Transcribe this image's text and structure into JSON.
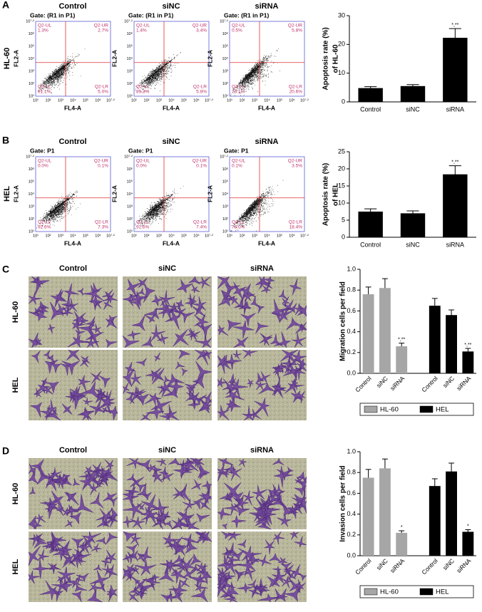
{
  "panels": [
    {
      "label": "A",
      "row_label": "HL-60",
      "column_titles": [
        "Control",
        "siNC",
        "siRNA"
      ],
      "plots": [
        {
          "gate": "Gate: (R1 in P1)",
          "quadrants": [
            {
              "name": "Q2-UL",
              "value": "1.3%"
            },
            {
              "name": "Q2-UR",
              "value": "2.7%"
            },
            {
              "name": "Q2-LL",
              "value": "91.1%"
            },
            {
              "name": "Q2-LR",
              "value": "5.0%"
            }
          ]
        },
        {
          "gate": "Gate: (R1 in P1)",
          "quadrants": [
            {
              "name": "Q2-UL",
              "value": "1.4%"
            },
            {
              "name": "Q2-UR",
              "value": "3.4%"
            },
            {
              "name": "Q2-LL",
              "value": "89.3%"
            },
            {
              "name": "Q2-LR",
              "value": "5.8%"
            }
          ]
        },
        {
          "gate": "Gate: (R1 in P1)",
          "quadrants": [
            {
              "name": "Q2-UL",
              "value": "0.5%"
            },
            {
              "name": "Q2-UR",
              "value": "5.8%"
            },
            {
              "name": "Q2-LL",
              "value": "73.1%"
            },
            {
              "name": "Q2-LR",
              "value": "20.6%"
            }
          ]
        }
      ]
    },
    {
      "label": "B",
      "row_label": "HEL",
      "column_titles": [
        "Control",
        "siNC",
        "siRNA"
      ],
      "plots": [
        {
          "gate": "Gate: P1",
          "quadrants": [
            {
              "name": "Q2-UL",
              "value": "0.0%"
            },
            {
              "name": "Q2-UR",
              "value": "0.1%"
            },
            {
              "name": "Q2-LL",
              "value": "92.6%"
            },
            {
              "name": "Q2-LR",
              "value": "7.3%"
            }
          ]
        },
        {
          "gate": "Gate: P1",
          "quadrants": [
            {
              "name": "Q2-UL",
              "value": "0.0%"
            },
            {
              "name": "Q2-UR",
              "value": "0.1%"
            },
            {
              "name": "Q2-LL",
              "value": "92.5%"
            },
            {
              "name": "Q2-LR",
              "value": "7.4%"
            }
          ]
        },
        {
          "gate": "Gate: P1",
          "quadrants": [
            {
              "name": "Q2-UL",
              "value": "0.1%"
            },
            {
              "name": "Q2-UR",
              "value": "3.5%"
            },
            {
              "name": "Q2-LL",
              "value": "78.0%"
            },
            {
              "name": "Q2-LR",
              "value": "18.4%"
            }
          ]
        }
      ]
    },
    {
      "label": "C",
      "row_labels": [
        "HL-60",
        "HEL"
      ],
      "column_titles": [
        "Control",
        "siNC",
        "siRNA"
      ]
    },
    {
      "label": "D",
      "row_labels": [
        "HL-60",
        "HEL"
      ],
      "column_titles": [
        "Control",
        "siNC",
        "siRNA"
      ]
    }
  ],
  "flow_axes": {
    "x_label": "FL4-A",
    "y_label": "FL2-A",
    "ticks": [
      "10¹",
      "10²",
      "10³",
      "10⁴",
      "10⁵",
      "10⁶",
      "10⁷·²"
    ]
  },
  "chart_data": [
    {
      "type": "bar",
      "y_label": [
        "Apoptosis rate (%)",
        "of HL-60"
      ],
      "categories": [
        "Control",
        "siNC",
        "siRNA"
      ],
      "values": [
        4.8,
        5.5,
        22.3
      ],
      "errors": [
        0.5,
        0.5,
        3.2
      ],
      "significance": [
        null,
        null,
        "*,**"
      ],
      "color": "#000000",
      "ylim": [
        0,
        30
      ],
      "yticks": [
        0,
        10,
        20,
        30
      ]
    },
    {
      "type": "bar",
      "y_label": [
        "Apoptosis rate (%)",
        "of HEL"
      ],
      "categories": [
        "Control",
        "siNC",
        "siRNA"
      ],
      "values": [
        7.5,
        7.0,
        18.4
      ],
      "errors": [
        0.8,
        0.7,
        2.5
      ],
      "significance": [
        null,
        null,
        "*,**"
      ],
      "color": "#000000",
      "ylim": [
        0,
        25
      ],
      "yticks": [
        0,
        5,
        10,
        15,
        20,
        25
      ]
    },
    {
      "type": "bar",
      "y_label": [
        "Migration cells per field"
      ],
      "categories": [
        "Control",
        "siNC",
        "siRNA"
      ],
      "series": [
        {
          "name": "HL-60",
          "color": "#a6a6a6",
          "values": [
            0.76,
            0.82,
            0.26
          ],
          "errors": [
            0.07,
            0.09,
            0.03
          ],
          "significance": [
            null,
            null,
            "*,**"
          ]
        },
        {
          "name": "HEL",
          "color": "#000000",
          "values": [
            0.65,
            0.56,
            0.21
          ],
          "errors": [
            0.07,
            0.05,
            0.03
          ],
          "significance": [
            null,
            null,
            "*,**"
          ]
        }
      ],
      "ylim": [
        0,
        1
      ],
      "yticks": [
        {
          "value": 0,
          "label": "0.0"
        },
        0.2,
        0.4,
        0.6,
        0.8,
        {
          "value": 1,
          "label": "1.0"
        }
      ]
    },
    {
      "type": "bar",
      "y_label": [
        "Invasion cells per field"
      ],
      "categories": [
        "Control",
        "siNC",
        "siRNA"
      ],
      "series": [
        {
          "name": "HL-60",
          "color": "#a6a6a6",
          "values": [
            0.75,
            0.84,
            0.22
          ],
          "errors": [
            0.08,
            0.09,
            0.02
          ],
          "significance": [
            null,
            null,
            "*"
          ]
        },
        {
          "name": "HEL",
          "color": "#000000",
          "values": [
            0.67,
            0.81,
            0.23
          ],
          "errors": [
            0.07,
            0.08,
            0.02
          ],
          "significance": [
            null,
            null,
            "*"
          ]
        }
      ],
      "ylim": [
        0,
        1
      ],
      "yticks": [
        {
          "value": 0,
          "label": "0.0"
        },
        0.2,
        0.4,
        0.6,
        0.8,
        {
          "value": 1,
          "label": "1.0"
        }
      ]
    }
  ]
}
